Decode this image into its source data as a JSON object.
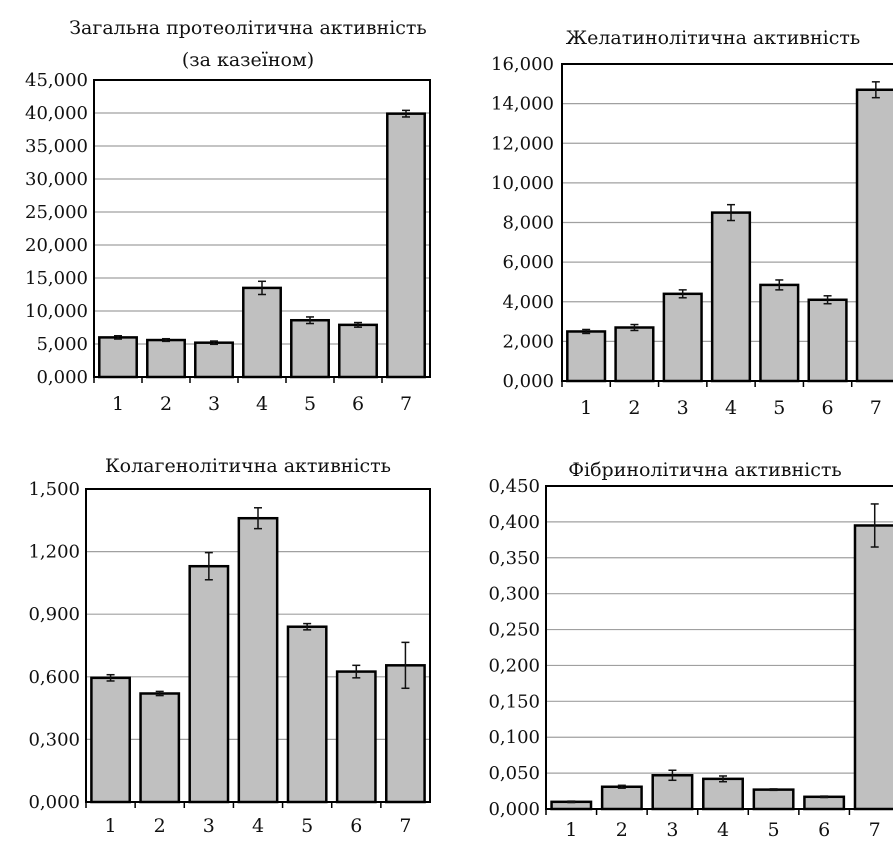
{
  "chart_data": [
    {
      "type": "bar",
      "title": "Загальна протеолітична активність",
      "subtitle": "(за казеїном)",
      "categories": [
        "1",
        "2",
        "3",
        "4",
        "5",
        "6",
        "7"
      ],
      "values": [
        6000,
        5600,
        5200,
        13500,
        8600,
        7900,
        39900
      ],
      "errors": [
        250,
        200,
        250,
        1000,
        500,
        350,
        500
      ],
      "ylim": [
        0,
        45000
      ],
      "yticks": [
        "0,000",
        "5,000",
        "10,000",
        "15,000",
        "20,000",
        "25,000",
        "30,000",
        "35,000",
        "40,000",
        "45,000"
      ],
      "grid": true,
      "bar_color": "#c0c0c0"
    },
    {
      "type": "bar",
      "title": "Желатинолітична активність",
      "categories": [
        "1",
        "2",
        "3",
        "4",
        "5",
        "6",
        "7"
      ],
      "values": [
        2500,
        2700,
        4400,
        8500,
        4850,
        4100,
        14700
      ],
      "errors": [
        100,
        150,
        200,
        400,
        250,
        200,
        400
      ],
      "ylim": [
        0,
        16000
      ],
      "yticks": [
        "0,000",
        "2,000",
        "4,000",
        "6,000",
        "8,000",
        "10,000",
        "12,000",
        "14,000",
        "16,000"
      ],
      "grid": true,
      "bar_color": "#c0c0c0"
    },
    {
      "type": "bar",
      "title": "Колагенолітична активність",
      "categories": [
        "1",
        "2",
        "3",
        "4",
        "5",
        "6",
        "7"
      ],
      "values": [
        0.595,
        0.52,
        1.13,
        1.36,
        0.84,
        0.625,
        0.655
      ],
      "errors": [
        0.015,
        0.01,
        0.065,
        0.05,
        0.015,
        0.03,
        0.11
      ],
      "ylim": [
        0,
        1.5
      ],
      "yticks": [
        "0,000",
        "0,300",
        "0,600",
        "0,900",
        "1,200",
        "1,500"
      ],
      "grid": true,
      "bar_color": "#c0c0c0"
    },
    {
      "type": "bar",
      "title": "Фібринолітична активність",
      "categories": [
        "1",
        "2",
        "3",
        "4",
        "5",
        "6",
        "7"
      ],
      "values": [
        0.01,
        0.031,
        0.047,
        0.042,
        0.027,
        0.017,
        0.395
      ],
      "errors": [
        0.001,
        0.002,
        0.007,
        0.004,
        0.001,
        0.001,
        0.03
      ],
      "ylim": [
        0,
        0.45
      ],
      "yticks": [
        "0,000",
        "0,050",
        "0,100",
        "0,150",
        "0,200",
        "0,250",
        "0,300",
        "0,350",
        "0,400",
        "0,450"
      ],
      "grid": true,
      "bar_color": "#c0c0c0"
    }
  ]
}
